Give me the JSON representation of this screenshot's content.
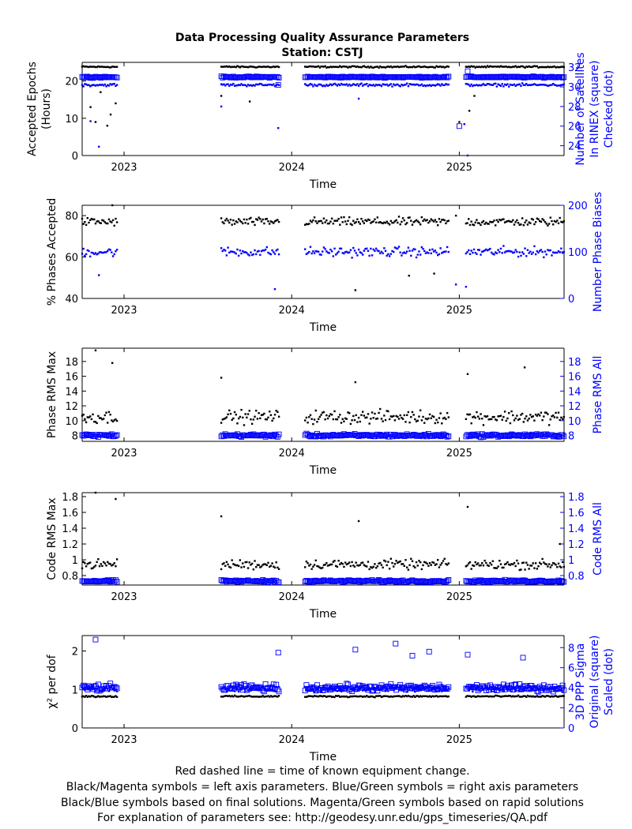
{
  "title_line1": "Data Processing Quality Assurance Parameters",
  "title_line2": "Station: CSTJ",
  "footer": [
    "Red dashed line = time of known equipment change.",
    "Black/Magenta symbols = left axis parameters. Blue/Green symbols = right axis parameters",
    "Black/Blue symbols based on final solutions.  Magenta/Green symbols based on rapid solutions",
    "For explanation of parameters see: http://geodesy.unr.edu/gps_timeseries/QA.pdf"
  ],
  "colors": {
    "left_axis": "#000000",
    "right_axis": "#0000ff"
  },
  "chart_data": [
    {
      "type": "scatter",
      "xlabel": "Time",
      "xlim": [
        2022.75,
        2025.625
      ],
      "xticks": [
        2023,
        2024,
        2025
      ],
      "xtick_labels": [
        "2023",
        "2024",
        "2025"
      ],
      "left": {
        "label": [
          "Accepted Epochs",
          "(Hours)"
        ],
        "ylim": [
          0,
          25
        ],
        "ticks": [
          0,
          10,
          20
        ]
      },
      "right": {
        "label": [
          "Number of Satellites",
          "In RINEX (square)",
          "Checked (dot)"
        ],
        "ylim": [
          23,
          32.5
        ],
        "ticks": [
          24,
          26,
          28,
          30,
          32
        ]
      },
      "series": [
        {
          "axis": "left",
          "marker": "dot",
          "base": 23.8,
          "jitter": 0.3,
          "outliers": [
            [
              2022.8,
              13
            ],
            [
              2022.83,
              9
            ],
            [
              2022.86,
              17
            ],
            [
              2022.9,
              8
            ],
            [
              2022.92,
              11
            ],
            [
              2022.95,
              14
            ],
            [
              2023.58,
              16
            ],
            [
              2023.75,
              14.5
            ],
            [
              2024.62,
              21
            ],
            [
              2025.0,
              9
            ],
            [
              2025.06,
              12
            ],
            [
              2025.09,
              16
            ]
          ]
        },
        {
          "axis": "right",
          "marker": "square",
          "base": 31.0,
          "jitter": 0.1,
          "outliers": [
            [
              2023.92,
              30.2
            ],
            [
              2025.0,
              26
            ],
            [
              2025.05,
              31.6
            ]
          ]
        },
        {
          "axis": "right",
          "marker": "dot",
          "base": 30.2,
          "jitter": 0.2,
          "outliers": [
            [
              2022.85,
              23.9
            ],
            [
              2022.8,
              26.5
            ],
            [
              2023.58,
              28.0
            ],
            [
              2023.92,
              25.8
            ],
            [
              2024.4,
              28.8
            ],
            [
              2025.05,
              23.0
            ],
            [
              2025.03,
              26.2
            ]
          ]
        }
      ]
    },
    {
      "type": "scatter",
      "xlabel": "Time",
      "xlim": [
        2022.75,
        2025.625
      ],
      "xticks": [
        2023,
        2024,
        2025
      ],
      "xtick_labels": [
        "2023",
        "2024",
        "2025"
      ],
      "left": {
        "label": [
          "% Phases Accepted"
        ],
        "ylim": [
          40,
          85
        ],
        "ticks": [
          40,
          60,
          80
        ]
      },
      "right": {
        "label": [
          "Number Phase Biases"
        ],
        "ylim": [
          0,
          200
        ],
        "ticks": [
          0,
          100,
          200
        ]
      },
      "series": [
        {
          "axis": "left",
          "marker": "dot",
          "base": 77,
          "jitter": 3,
          "outliers": [
            [
              2022.93,
              85
            ],
            [
              2024.38,
              44
            ],
            [
              2024.7,
              51
            ],
            [
              2024.85,
              52
            ],
            [
              2024.98,
              80
            ]
          ]
        },
        {
          "axis": "right",
          "marker": "dot",
          "base": 100,
          "jitter": 15,
          "outliers": [
            [
              2022.85,
              50
            ],
            [
              2023.9,
              20
            ],
            [
              2024.98,
              30
            ],
            [
              2025.04,
              25
            ]
          ]
        }
      ]
    },
    {
      "type": "scatter",
      "xlabel": "Time",
      "xlim": [
        2022.75,
        2025.625
      ],
      "xticks": [
        2023,
        2024,
        2025
      ],
      "xtick_labels": [
        "2023",
        "2024",
        "2025"
      ],
      "left": {
        "label": [
          "Phase RMS Max"
        ],
        "ylim": [
          7.2,
          19.8
        ],
        "ticks": [
          8,
          10,
          12,
          14,
          16,
          18
        ]
      },
      "right": {
        "label": [
          "Phase RMS All"
        ],
        "ylim": [
          7.2,
          19.8
        ],
        "ticks": [
          8,
          10,
          12,
          14,
          16,
          18
        ]
      },
      "series": [
        {
          "axis": "left",
          "marker": "dot",
          "base": 10.5,
          "jitter": 1.3,
          "outliers": [
            [
              2022.83,
              19.5
            ],
            [
              2022.93,
              17.8
            ],
            [
              2023.58,
              15.8
            ],
            [
              2024.38,
              15.2
            ],
            [
              2025.05,
              16.3
            ],
            [
              2025.39,
              17.2
            ]
          ]
        },
        {
          "axis": "right",
          "marker": "square",
          "base": 8.0,
          "jitter": 0.3,
          "outliers": []
        }
      ]
    },
    {
      "type": "scatter",
      "xlabel": "Time",
      "xlim": [
        2022.75,
        2025.625
      ],
      "xticks": [
        2023,
        2024,
        2025
      ],
      "xtick_labels": [
        "2023",
        "2024",
        "2025"
      ],
      "left": {
        "label": [
          "Code RMS Max"
        ],
        "ylim": [
          0.68,
          1.85
        ],
        "ticks": [
          0.8,
          1,
          1.2,
          1.4,
          1.6,
          1.8
        ]
      },
      "right": {
        "label": [
          "Code RMS All"
        ],
        "ylim": [
          0.68,
          1.85
        ],
        "ticks": [
          0.8,
          1,
          1.2,
          1.4,
          1.6,
          1.8
        ]
      },
      "series": [
        {
          "axis": "left",
          "marker": "dot",
          "base": 0.94,
          "jitter": 0.09,
          "outliers": [
            [
              2022.83,
              1.85
            ],
            [
              2022.95,
              1.77
            ],
            [
              2023.58,
              1.55
            ],
            [
              2024.4,
              1.49
            ],
            [
              2025.05,
              1.67
            ],
            [
              2025.6,
              1.2
            ]
          ]
        },
        {
          "axis": "right",
          "marker": "square",
          "base": 0.73,
          "jitter": 0.02,
          "outliers": []
        }
      ]
    },
    {
      "type": "scatter",
      "xlabel": "Time",
      "xlim": [
        2022.75,
        2025.625
      ],
      "xticks": [
        2023,
        2024,
        2025
      ],
      "xtick_labels": [
        "2023",
        "2024",
        "2025"
      ],
      "left": {
        "label": [
          "χ² per dof"
        ],
        "ylim": [
          0,
          2.4
        ],
        "ticks": [
          0,
          1,
          2
        ]
      },
      "right": {
        "label": [
          "3D PPP Sigma",
          "Original (square)",
          "Scaled (dot)"
        ],
        "ylim": [
          0,
          9.2
        ],
        "ticks": [
          0,
          2,
          4,
          6,
          8
        ]
      },
      "series": [
        {
          "axis": "left",
          "marker": "dot",
          "base": 0.82,
          "jitter": 0.03,
          "outliers": []
        },
        {
          "axis": "right",
          "marker": "square",
          "base": 4.0,
          "jitter": 0.5,
          "outliers": [
            [
              2022.83,
              8.8
            ],
            [
              2023.92,
              7.5
            ],
            [
              2024.38,
              7.8
            ],
            [
              2024.62,
              8.4
            ],
            [
              2024.72,
              7.2
            ],
            [
              2024.82,
              7.6
            ],
            [
              2025.05,
              7.3
            ],
            [
              2025.38,
              7.0
            ]
          ]
        },
        {
          "axis": "right",
          "marker": "dot",
          "base": 3.9,
          "jitter": 0.4,
          "outliers": []
        }
      ]
    }
  ]
}
